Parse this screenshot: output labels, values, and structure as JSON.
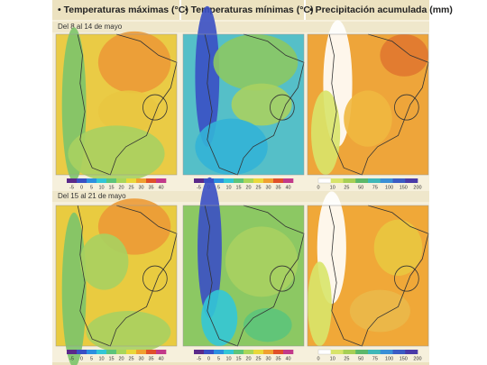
{
  "header": {
    "columns": [
      "• Temperaturas máximas (°C)",
      "• Temperaturas mínimas (°C)",
      "• Precipitación acumulada (mm)"
    ]
  },
  "periods": [
    {
      "label": "Del 8 al 14 de mayo"
    },
    {
      "label": "Del 15 al 21 de mayo"
    }
  ],
  "legends": [
    {
      "ticks": [
        -5,
        0,
        5,
        10,
        15,
        20,
        25,
        30,
        35,
        40
      ]
    },
    {
      "ticks": [
        -5,
        0,
        5,
        10,
        15,
        20,
        25,
        30,
        35,
        40
      ]
    },
    {
      "ticks": [
        0,
        10,
        25,
        50,
        75,
        100,
        150,
        200
      ]
    }
  ]
}
